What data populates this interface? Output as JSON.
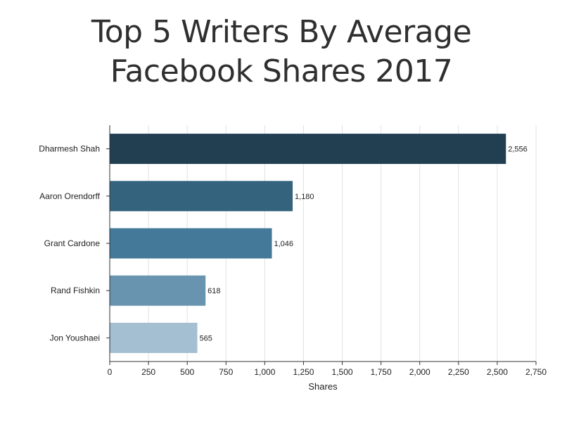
{
  "chart_data": {
    "type": "bar",
    "orientation": "horizontal",
    "title_lines": [
      "Top 5 Writers By Average",
      "Facebook Shares 2017"
    ],
    "categories": [
      "Dharmesh Shah",
      "Aaron Orendorff",
      "Grant Cardone",
      "Rand Fishkin",
      "Jon Youshaei"
    ],
    "values": [
      2556,
      1180,
      1046,
      618,
      565
    ],
    "value_labels": [
      "2,556",
      "1,180",
      "1,046",
      "618",
      "565"
    ],
    "bar_colors": [
      "#223f52",
      "#34637e",
      "#44799a",
      "#6894b0",
      "#a3bfd1"
    ],
    "xlabel": "Shares",
    "ylabel": "",
    "xlim": [
      0,
      2750
    ],
    "xticks": [
      0,
      250,
      500,
      750,
      1000,
      1250,
      1500,
      1750,
      2000,
      2250,
      2500,
      2750
    ],
    "xtick_labels": [
      "0",
      "250",
      "500",
      "750",
      "1,000",
      "1,250",
      "1,500",
      "1,750",
      "2,000",
      "2,250",
      "2,500",
      "2,750"
    ],
    "grid": true,
    "legend": "none"
  }
}
